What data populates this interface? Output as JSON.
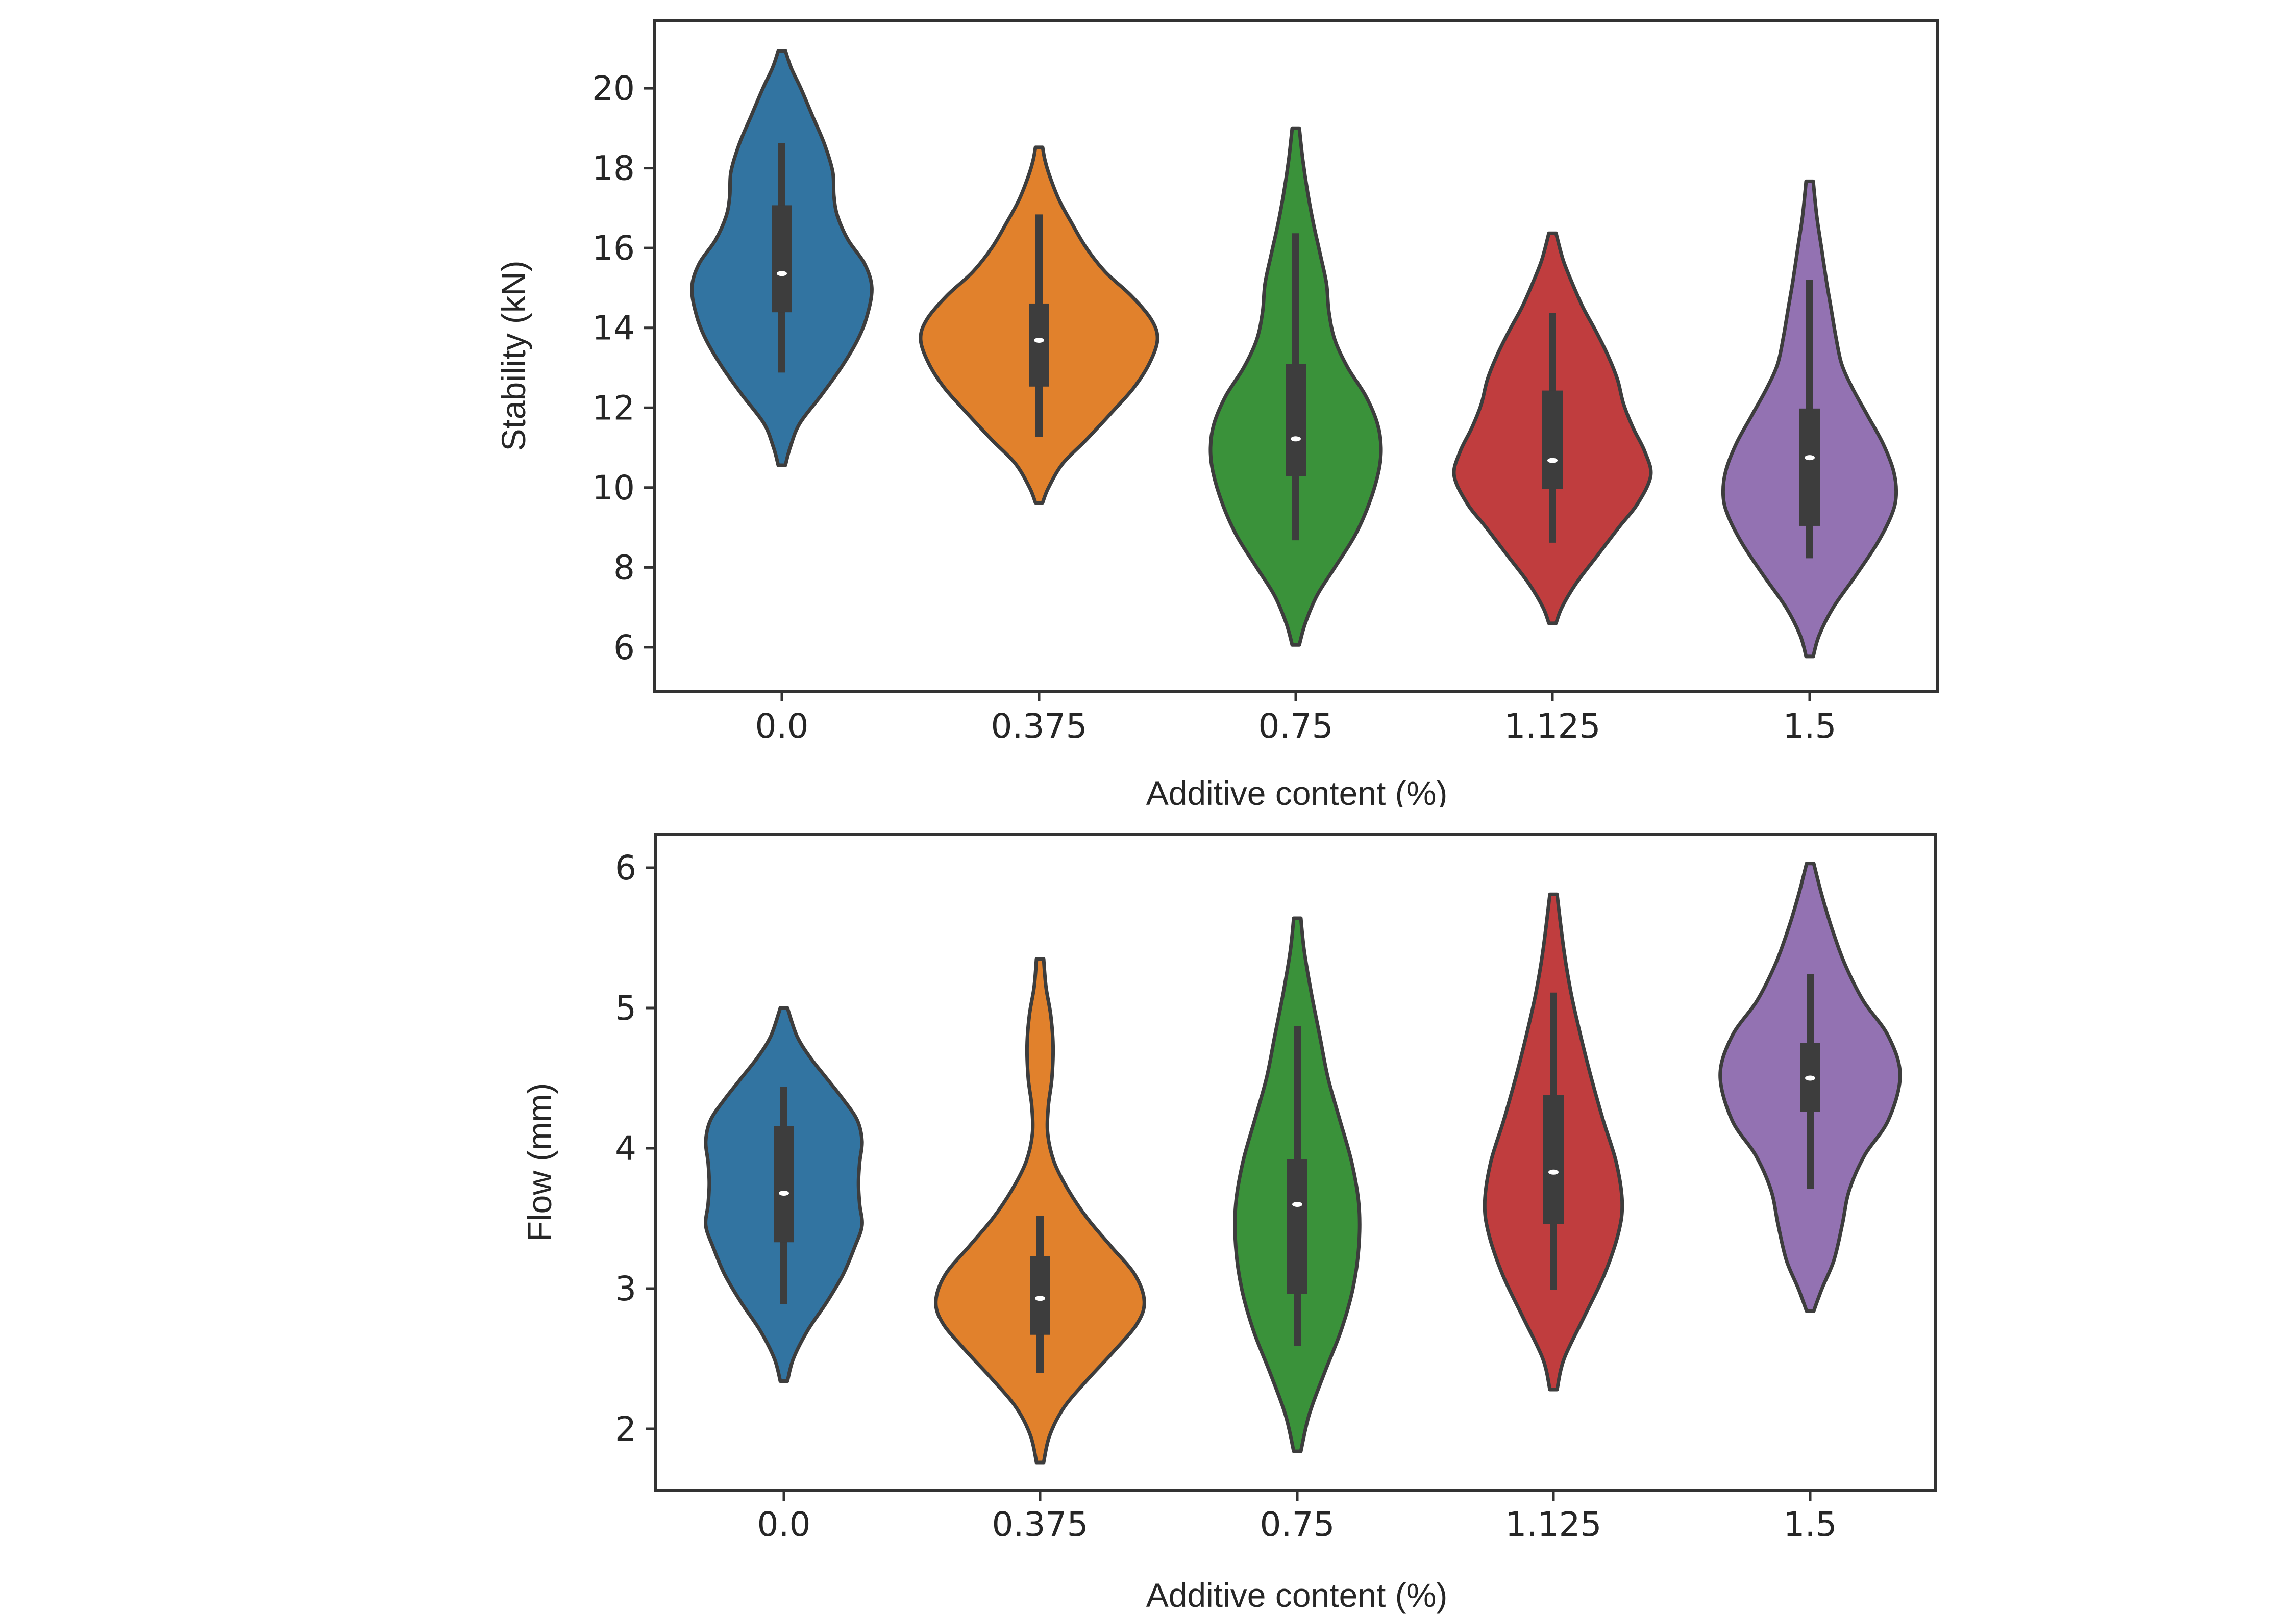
{
  "chart_data": [
    {
      "type": "violin",
      "id": "stability",
      "title": "",
      "xlabel": "Additive content (%)",
      "ylabel": "Stability (kN)",
      "categories": [
        "0.0",
        "0.375",
        "0.75",
        "1.125",
        "1.5"
      ],
      "yticks": [
        6,
        8,
        10,
        12,
        14,
        16,
        18,
        20
      ],
      "ylim": [
        4.9,
        21.7
      ],
      "grid": false,
      "legend": "none",
      "xlabel_clipped": true,
      "series": [
        {
          "name": "0.0",
          "color": "#3274a1",
          "min": 10.56,
          "whisker_low": 12.88,
          "q1": 14.39,
          "median": 15.36,
          "q3": 17.07,
          "whisker_high": 18.63,
          "max": 20.94,
          "density": [
            [
              10.56,
              0.03
            ],
            [
              11.0,
              0.07
            ],
            [
              11.6,
              0.15
            ],
            [
              12.3,
              0.33
            ],
            [
              13.0,
              0.5
            ],
            [
              13.7,
              0.64
            ],
            [
              14.3,
              0.72
            ],
            [
              15.0,
              0.76
            ],
            [
              15.6,
              0.7
            ],
            [
              16.2,
              0.56
            ],
            [
              16.8,
              0.47
            ],
            [
              17.3,
              0.44
            ],
            [
              17.9,
              0.43
            ],
            [
              18.6,
              0.36
            ],
            [
              19.3,
              0.26
            ],
            [
              20.0,
              0.16
            ],
            [
              20.5,
              0.08
            ],
            [
              20.94,
              0.03
            ]
          ]
        },
        {
          "name": "0.375",
          "color": "#e1812c",
          "min": 9.62,
          "whisker_low": 11.27,
          "q1": 12.53,
          "median": 13.69,
          "q3": 14.61,
          "whisker_high": 16.84,
          "max": 18.52,
          "density": [
            [
              9.62,
              0.03
            ],
            [
              10.0,
              0.08
            ],
            [
              10.6,
              0.2
            ],
            [
              11.2,
              0.4
            ],
            [
              11.9,
              0.62
            ],
            [
              12.5,
              0.8
            ],
            [
              13.1,
              0.93
            ],
            [
              13.7,
              1.0
            ],
            [
              14.2,
              0.95
            ],
            [
              14.8,
              0.78
            ],
            [
              15.4,
              0.56
            ],
            [
              16.0,
              0.4
            ],
            [
              16.6,
              0.28
            ],
            [
              17.2,
              0.17
            ],
            [
              17.8,
              0.09
            ],
            [
              18.2,
              0.05
            ],
            [
              18.52,
              0.03
            ]
          ]
        },
        {
          "name": "0.75",
          "color": "#3a923a",
          "min": 6.06,
          "whisker_low": 8.68,
          "q1": 10.29,
          "median": 11.22,
          "q3": 13.09,
          "whisker_high": 16.37,
          "max": 19.0,
          "density": [
            [
              6.06,
              0.03
            ],
            [
              6.6,
              0.08
            ],
            [
              7.3,
              0.18
            ],
            [
              8.0,
              0.33
            ],
            [
              8.8,
              0.5
            ],
            [
              9.6,
              0.62
            ],
            [
              10.4,
              0.7
            ],
            [
              11.0,
              0.72
            ],
            [
              11.6,
              0.69
            ],
            [
              12.3,
              0.59
            ],
            [
              13.0,
              0.44
            ],
            [
              13.7,
              0.33
            ],
            [
              14.4,
              0.28
            ],
            [
              15.1,
              0.26
            ],
            [
              15.8,
              0.21
            ],
            [
              16.6,
              0.15
            ],
            [
              17.4,
              0.1
            ],
            [
              18.2,
              0.06
            ],
            [
              19.0,
              0.03
            ]
          ]
        },
        {
          "name": "1.125",
          "color": "#c03d3e",
          "min": 6.6,
          "whisker_low": 8.62,
          "q1": 9.97,
          "median": 10.68,
          "q3": 12.43,
          "whisker_high": 14.37,
          "max": 16.37,
          "density": [
            [
              6.6,
              0.03
            ],
            [
              7.0,
              0.08
            ],
            [
              7.6,
              0.2
            ],
            [
              8.3,
              0.38
            ],
            [
              9.0,
              0.56
            ],
            [
              9.6,
              0.72
            ],
            [
              10.3,
              0.83
            ],
            [
              10.9,
              0.78
            ],
            [
              11.5,
              0.68
            ],
            [
              12.1,
              0.6
            ],
            [
              12.7,
              0.55
            ],
            [
              13.3,
              0.47
            ],
            [
              13.9,
              0.37
            ],
            [
              14.5,
              0.26
            ],
            [
              15.1,
              0.17
            ],
            [
              15.7,
              0.09
            ],
            [
              16.37,
              0.03
            ]
          ]
        },
        {
          "name": "1.5",
          "color": "#9372b2",
          "min": 5.77,
          "whisker_low": 8.23,
          "q1": 9.04,
          "median": 10.75,
          "q3": 11.98,
          "whisker_high": 15.2,
          "max": 17.67,
          "density": [
            [
              5.77,
              0.03
            ],
            [
              6.3,
              0.08
            ],
            [
              7.0,
              0.2
            ],
            [
              7.8,
              0.39
            ],
            [
              8.6,
              0.57
            ],
            [
              9.3,
              0.69
            ],
            [
              9.8,
              0.73
            ],
            [
              10.4,
              0.71
            ],
            [
              11.1,
              0.62
            ],
            [
              11.8,
              0.49
            ],
            [
              12.5,
              0.36
            ],
            [
              13.1,
              0.27
            ],
            [
              13.8,
              0.22
            ],
            [
              14.5,
              0.18
            ],
            [
              15.2,
              0.14
            ],
            [
              16.0,
              0.1
            ],
            [
              16.8,
              0.06
            ],
            [
              17.67,
              0.03
            ]
          ]
        }
      ]
    },
    {
      "type": "violin",
      "id": "flow",
      "title": "",
      "xlabel": "Additive content (%)",
      "ylabel": "Flow (mm)",
      "categories": [
        "0.0",
        "0.375",
        "0.75",
        "1.125",
        "1.5"
      ],
      "yticks": [
        2,
        3,
        4,
        5,
        6
      ],
      "ylim": [
        1.56,
        6.24
      ],
      "grid": false,
      "legend": "none",
      "series": [
        {
          "name": "0.0",
          "color": "#3274a1",
          "min": 2.34,
          "whisker_low": 2.89,
          "q1": 3.33,
          "median": 3.68,
          "q3": 4.16,
          "whisker_high": 4.44,
          "max": 5.0,
          "density": [
            [
              2.34,
              0.03
            ],
            [
              2.5,
              0.08
            ],
            [
              2.7,
              0.2
            ],
            [
              2.9,
              0.36
            ],
            [
              3.1,
              0.5
            ],
            [
              3.3,
              0.6
            ],
            [
              3.45,
              0.66
            ],
            [
              3.6,
              0.64
            ],
            [
              3.75,
              0.63
            ],
            [
              3.9,
              0.64
            ],
            [
              4.05,
              0.66
            ],
            [
              4.2,
              0.62
            ],
            [
              4.35,
              0.5
            ],
            [
              4.5,
              0.36
            ],
            [
              4.65,
              0.22
            ],
            [
              4.8,
              0.11
            ],
            [
              5.0,
              0.03
            ]
          ]
        },
        {
          "name": "0.375",
          "color": "#e1812c",
          "min": 1.76,
          "whisker_low": 2.4,
          "q1": 2.67,
          "median": 2.93,
          "q3": 3.23,
          "whisker_high": 3.52,
          "max": 5.35,
          "density": [
            [
              1.76,
              0.03
            ],
            [
              1.95,
              0.08
            ],
            [
              2.15,
              0.2
            ],
            [
              2.35,
              0.4
            ],
            [
              2.55,
              0.62
            ],
            [
              2.75,
              0.82
            ],
            [
              2.91,
              0.88
            ],
            [
              3.1,
              0.8
            ],
            [
              3.3,
              0.6
            ],
            [
              3.5,
              0.4
            ],
            [
              3.7,
              0.24
            ],
            [
              3.9,
              0.12
            ],
            [
              4.1,
              0.065
            ],
            [
              4.3,
              0.07
            ],
            [
              4.5,
              0.1
            ],
            [
              4.73,
              0.11
            ],
            [
              4.95,
              0.09
            ],
            [
              5.15,
              0.05
            ],
            [
              5.35,
              0.03
            ]
          ]
        },
        {
          "name": "0.75",
          "color": "#3a923a",
          "min": 1.84,
          "whisker_low": 2.59,
          "q1": 2.96,
          "median": 3.6,
          "q3": 3.92,
          "whisker_high": 4.87,
          "max": 5.64,
          "density": [
            [
              1.84,
              0.03
            ],
            [
              2.1,
              0.1
            ],
            [
              2.4,
              0.23
            ],
            [
              2.7,
              0.37
            ],
            [
              3.0,
              0.47
            ],
            [
              3.3,
              0.52
            ],
            [
              3.6,
              0.52
            ],
            [
              3.9,
              0.46
            ],
            [
              4.2,
              0.36
            ],
            [
              4.5,
              0.26
            ],
            [
              4.8,
              0.19
            ],
            [
              5.1,
              0.12
            ],
            [
              5.4,
              0.06
            ],
            [
              5.64,
              0.03
            ]
          ]
        },
        {
          "name": "1.125",
          "color": "#c03d3e",
          "min": 2.28,
          "whisker_low": 2.99,
          "q1": 3.46,
          "median": 3.83,
          "q3": 4.38,
          "whisker_high": 5.11,
          "max": 5.81,
          "density": [
            [
              2.28,
              0.03
            ],
            [
              2.5,
              0.09
            ],
            [
              2.8,
              0.26
            ],
            [
              3.1,
              0.43
            ],
            [
              3.4,
              0.55
            ],
            [
              3.62,
              0.58
            ],
            [
              3.9,
              0.53
            ],
            [
              4.2,
              0.42
            ],
            [
              4.5,
              0.32
            ],
            [
              4.8,
              0.23
            ],
            [
              5.1,
              0.15
            ],
            [
              5.4,
              0.09
            ],
            [
              5.81,
              0.03
            ]
          ]
        },
        {
          "name": "1.5",
          "color": "#9372b2",
          "min": 2.84,
          "whisker_low": 3.71,
          "q1": 4.26,
          "median": 4.5,
          "q3": 4.75,
          "whisker_high": 5.24,
          "max": 6.03,
          "density": [
            [
              2.84,
              0.03
            ],
            [
              3.0,
              0.1
            ],
            [
              3.2,
              0.2
            ],
            [
              3.45,
              0.27
            ],
            [
              3.7,
              0.33
            ],
            [
              3.95,
              0.46
            ],
            [
              4.2,
              0.66
            ],
            [
              4.52,
              0.76
            ],
            [
              4.8,
              0.66
            ],
            [
              5.05,
              0.45
            ],
            [
              5.3,
              0.3
            ],
            [
              5.55,
              0.19
            ],
            [
              5.8,
              0.1
            ],
            [
              6.03,
              0.03
            ]
          ]
        }
      ]
    }
  ]
}
